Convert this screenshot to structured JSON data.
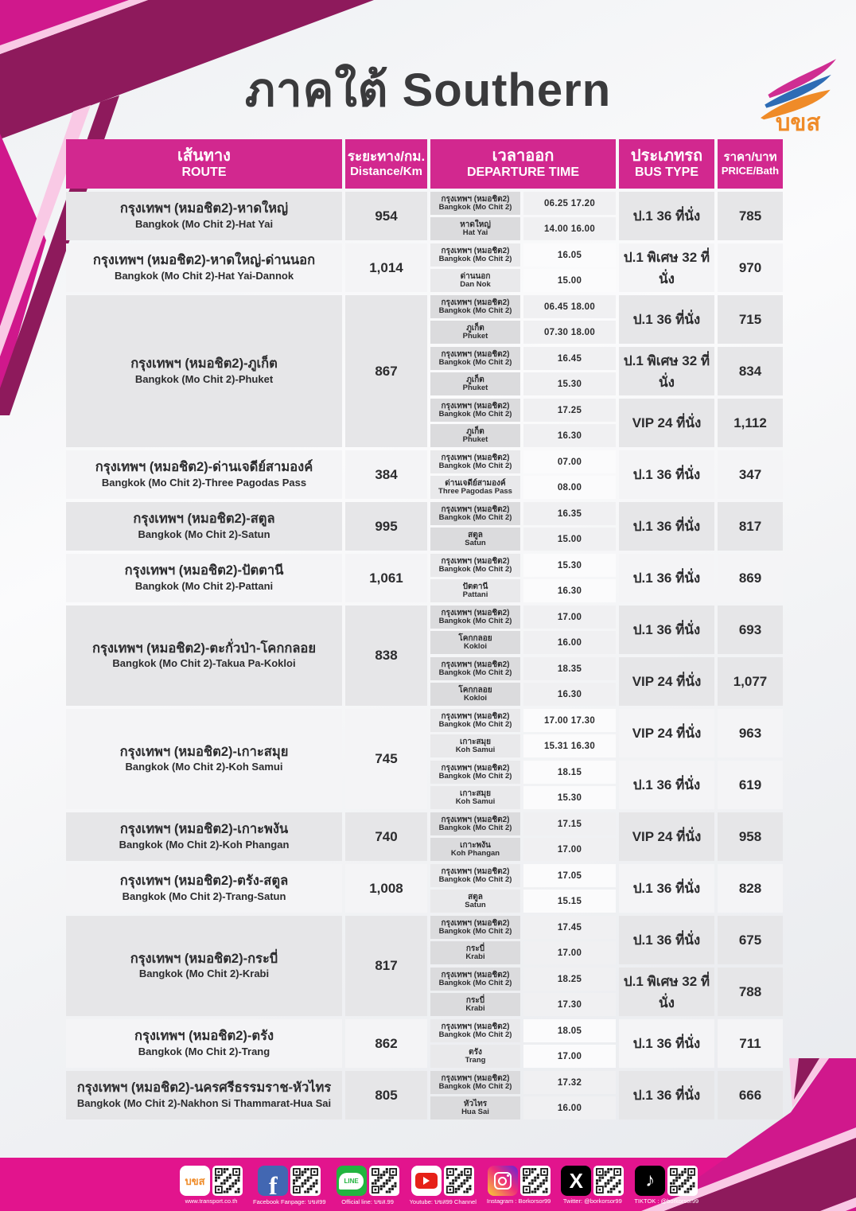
{
  "title": "ภาคใต้ Southern",
  "logo": {
    "text": "บขส"
  },
  "colors": {
    "header_magenta": "#d2288f",
    "footer_pink": "#e2148d",
    "deco_magenta": "#d0188c",
    "deco_maroon": "#8e1a5c",
    "deco_pale_pink": "#f9c9e5",
    "logo_orange": "#ef8b28",
    "logo_blue": "#2e6cb5"
  },
  "table": {
    "headers": {
      "route": {
        "th": "เส้นทาง",
        "en": "ROUTE"
      },
      "distance": {
        "th": "ระยะทาง/กม.",
        "en": "Distance/Km"
      },
      "departure": {
        "th": "เวลาออก",
        "en": "DEPARTURE TIME"
      },
      "bus_type": {
        "th": "ประเภทรถ",
        "en": "BUS TYPE"
      },
      "price": {
        "th": "ราคา/บาท",
        "en": "PRICE/Bath"
      }
    },
    "rows": [
      {
        "route_th": "กรุงเทพฯ (หมอชิต2)-หาดใหญ่",
        "route_en": "Bangkok (Mo Chit 2)-Hat Yai",
        "distance": "954",
        "groups": [
          {
            "stops": [
              {
                "th": "กรุงเทพฯ (หมอชิต2)",
                "en": "Bangkok (Mo Chit 2)",
                "times": "06.25 17.20"
              },
              {
                "th": "หาดใหญ่",
                "en": "Hat Yai",
                "times": "14.00 16.00"
              }
            ],
            "bus_type": "ป.1 36 ที่นั่ง",
            "price": "785"
          }
        ]
      },
      {
        "route_th": "กรุงเทพฯ (หมอชิต2)-หาดใหญ่-ด่านนอก",
        "route_en": "Bangkok (Mo Chit 2)-Hat Yai-Dannok",
        "distance": "1,014",
        "groups": [
          {
            "stops": [
              {
                "th": "กรุงเทพฯ (หมอชิต2)",
                "en": "Bangkok (Mo Chit 2)",
                "times": "16.05"
              },
              {
                "th": "ด่านนอก",
                "en": "Dan Nok",
                "times": "15.00"
              }
            ],
            "bus_type": "ป.1 พิเศษ 32 ที่นั่ง",
            "price": "970"
          }
        ]
      },
      {
        "route_th": "กรุงเทพฯ (หมอชิต2)-ภูเก็ต",
        "route_en": "Bangkok (Mo Chit 2)-Phuket",
        "distance": "867",
        "groups": [
          {
            "stops": [
              {
                "th": "กรุงเทพฯ (หมอชิต2)",
                "en": "Bangkok (Mo Chit 2)",
                "times": "06.45 18.00"
              },
              {
                "th": "ภูเก็ต",
                "en": "Phuket",
                "times": "07.30 18.00"
              }
            ],
            "bus_type": "ป.1 36 ที่นั่ง",
            "price": "715"
          },
          {
            "stops": [
              {
                "th": "กรุงเทพฯ (หมอชิต2)",
                "en": "Bangkok (Mo Chit 2)",
                "times": "16.45"
              },
              {
                "th": "ภูเก็ต",
                "en": "Phuket",
                "times": "15.30"
              }
            ],
            "bus_type": "ป.1 พิเศษ 32 ที่นั่ง",
            "price": "834"
          },
          {
            "stops": [
              {
                "th": "กรุงเทพฯ (หมอชิต2)",
                "en": "Bangkok (Mo Chit 2)",
                "times": "17.25"
              },
              {
                "th": "ภูเก็ต",
                "en": "Phuket",
                "times": "16.30"
              }
            ],
            "bus_type": "VIP 24 ที่นั่ง",
            "price": "1,112"
          }
        ]
      },
      {
        "route_th": "กรุงเทพฯ (หมอชิต2)-ด่านเจดีย์สามองค์",
        "route_en": "Bangkok (Mo Chit 2)-Three Pagodas Pass",
        "distance": "384",
        "groups": [
          {
            "stops": [
              {
                "th": "กรุงเทพฯ (หมอชิต2)",
                "en": "Bangkok (Mo Chit 2)",
                "times": "07.00"
              },
              {
                "th": "ด่านเจดีย์สามองค์",
                "en": "Three Pagodas Pass",
                "times": "08.00"
              }
            ],
            "bus_type": "ป.1 36 ที่นั่ง",
            "price": "347"
          }
        ]
      },
      {
        "route_th": "กรุงเทพฯ (หมอชิต2)-สตูล",
        "route_en": "Bangkok (Mo Chit 2)-Satun",
        "distance": "995",
        "groups": [
          {
            "stops": [
              {
                "th": "กรุงเทพฯ (หมอชิต2)",
                "en": "Bangkok (Mo Chit 2)",
                "times": "16.35"
              },
              {
                "th": "สตูล",
                "en": "Satun",
                "times": "15.00"
              }
            ],
            "bus_type": "ป.1 36 ที่นั่ง",
            "price": "817"
          }
        ]
      },
      {
        "route_th": "กรุงเทพฯ (หมอชิต2)-ปัตตานี",
        "route_en": "Bangkok (Mo Chit 2)-Pattani",
        "distance": "1,061",
        "groups": [
          {
            "stops": [
              {
                "th": "กรุงเทพฯ (หมอชิต2)",
                "en": "Bangkok (Mo Chit 2)",
                "times": "15.30"
              },
              {
                "th": "ปัตตานี",
                "en": "Pattani",
                "times": "16.30"
              }
            ],
            "bus_type": "ป.1 36 ที่นั่ง",
            "price": "869"
          }
        ]
      },
      {
        "route_th": "กรุงเทพฯ (หมอชิต2)-ตะกั่วป่า-โคกกลอย",
        "route_en": "Bangkok (Mo Chit 2)-Takua Pa-Kokloi",
        "distance": "838",
        "groups": [
          {
            "stops": [
              {
                "th": "กรุงเทพฯ (หมอชิต2)",
                "en": "Bangkok (Mo Chit 2)",
                "times": "17.00"
              },
              {
                "th": "โคกกลอย",
                "en": "Kokloi",
                "times": "16.00"
              }
            ],
            "bus_type": "ป.1 36 ที่นั่ง",
            "price": "693"
          },
          {
            "stops": [
              {
                "th": "กรุงเทพฯ (หมอชิต2)",
                "en": "Bangkok (Mo Chit 2)",
                "times": "18.35"
              },
              {
                "th": "โคกกลอย",
                "en": "Kokloi",
                "times": "16.30"
              }
            ],
            "bus_type": "VIP 24 ที่นั่ง",
            "price": "1,077"
          }
        ]
      },
      {
        "route_th": "กรุงเทพฯ (หมอชิต2)-เกาะสมุย",
        "route_en": "Bangkok (Mo Chit 2)-Koh Samui",
        "distance": "745",
        "groups": [
          {
            "stops": [
              {
                "th": "กรุงเทพฯ (หมอชิต2)",
                "en": "Bangkok (Mo Chit 2)",
                "times": "17.00 17.30"
              },
              {
                "th": "เกาะสมุย",
                "en": "Koh Samui",
                "times": "15.31 16.30"
              }
            ],
            "bus_type": "VIP 24 ที่นั่ง",
            "price": "963"
          },
          {
            "stops": [
              {
                "th": "กรุงเทพฯ (หมอชิต2)",
                "en": "Bangkok (Mo Chit 2)",
                "times": "18.15"
              },
              {
                "th": "เกาะสมุย",
                "en": "Koh Samui",
                "times": "15.30"
              }
            ],
            "bus_type": "ป.1 36 ที่นั่ง",
            "price": "619"
          }
        ]
      },
      {
        "route_th": "กรุงเทพฯ (หมอชิต2)-เกาะพงัน",
        "route_en": "Bangkok (Mo Chit 2)-Koh Phangan",
        "distance": "740",
        "groups": [
          {
            "stops": [
              {
                "th": "กรุงเทพฯ (หมอชิต2)",
                "en": "Bangkok (Mo Chit 2)",
                "times": "17.15"
              },
              {
                "th": "เกาะพงัน",
                "en": "Koh Phangan",
                "times": "17.00"
              }
            ],
            "bus_type": "VIP 24 ที่นั่ง",
            "price": "958"
          }
        ]
      },
      {
        "route_th": "กรุงเทพฯ (หมอชิต2)-ตรัง-สตูล",
        "route_en": "Bangkok (Mo Chit 2)-Trang-Satun",
        "distance": "1,008",
        "groups": [
          {
            "stops": [
              {
                "th": "กรุงเทพฯ (หมอชิต2)",
                "en": "Bangkok (Mo Chit 2)",
                "times": "17.05"
              },
              {
                "th": "สตูล",
                "en": "Satun",
                "times": "15.15"
              }
            ],
            "bus_type": "ป.1 36 ที่นั่ง",
            "price": "828"
          }
        ]
      },
      {
        "route_th": "กรุงเทพฯ (หมอชิต2)-กระบี่",
        "route_en": "Bangkok (Mo Chit 2)-Krabi",
        "distance": "817",
        "groups": [
          {
            "stops": [
              {
                "th": "กรุงเทพฯ (หมอชิต2)",
                "en": "Bangkok (Mo Chit 2)",
                "times": "17.45"
              },
              {
                "th": "กระบี่",
                "en": "Krabi",
                "times": "17.00"
              }
            ],
            "bus_type": "ป.1 36 ที่นั่ง",
            "price": "675"
          },
          {
            "stops": [
              {
                "th": "กรุงเทพฯ (หมอชิต2)",
                "en": "Bangkok (Mo Chit 2)",
                "times": "18.25"
              },
              {
                "th": "กระบี่",
                "en": "Krabi",
                "times": "17.30"
              }
            ],
            "bus_type": "ป.1 พิเศษ 32 ที่นั่ง",
            "price": "788"
          }
        ]
      },
      {
        "route_th": "กรุงเทพฯ (หมอชิต2)-ตรัง",
        "route_en": "Bangkok (Mo Chit 2)-Trang",
        "distance": "862",
        "groups": [
          {
            "stops": [
              {
                "th": "กรุงเทพฯ (หมอชิต2)",
                "en": "Bangkok (Mo Chit 2)",
                "times": "18.05"
              },
              {
                "th": "ตรัง",
                "en": "Trang",
                "times": "17.00"
              }
            ],
            "bus_type": "ป.1 36 ที่นั่ง",
            "price": "711"
          }
        ]
      },
      {
        "route_th": "กรุงเทพฯ (หมอชิต2)-นครศรีธรรมราช-หัวไทร",
        "route_en": "Bangkok (Mo Chit 2)-Nakhon Si Thammarat-Hua Sai",
        "distance": "805",
        "groups": [
          {
            "stops": [
              {
                "th": "กรุงเทพฯ (หมอชิต2)",
                "en": "Bangkok (Mo Chit 2)",
                "times": "17.32"
              },
              {
                "th": "หัวไทร",
                "en": "Hua Sai",
                "times": "16.00"
              }
            ],
            "bus_type": "ป.1 36 ที่นั่ง",
            "price": "666"
          }
        ]
      }
    ]
  },
  "footer": {
    "items": [
      {
        "icon": "bks-logo",
        "label": "www.transport.co.th"
      },
      {
        "icon": "facebook",
        "label": "Facebook Fanpage: บขส99"
      },
      {
        "icon": "line",
        "label": "Official line: บขส.99"
      },
      {
        "icon": "youtube",
        "label": "Youtube: บขส99 Channel"
      },
      {
        "icon": "instagram",
        "label": "Instagram : Borkorsor99"
      },
      {
        "icon": "x",
        "label": "Twitter: @borkorsor99"
      },
      {
        "icon": "tiktok",
        "label": "TIKTOK : @borkorsor99"
      }
    ]
  }
}
